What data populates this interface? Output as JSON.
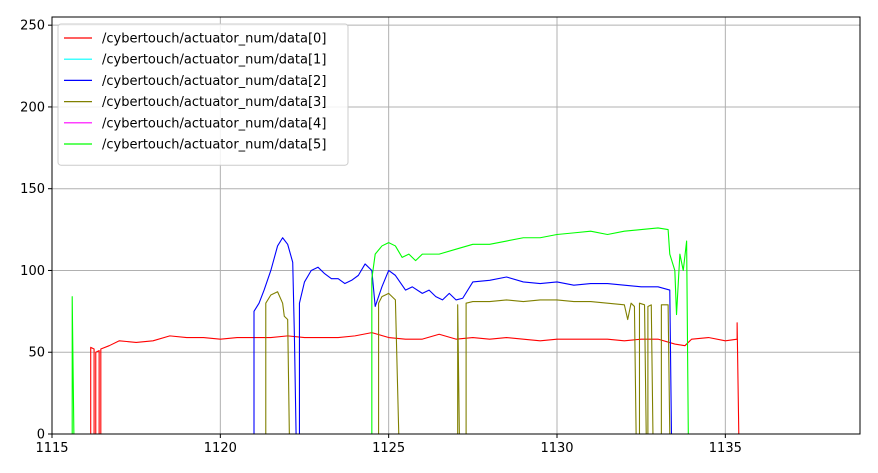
{
  "chart_data": {
    "type": "line",
    "title": "",
    "xlabel": "",
    "ylabel": "",
    "xlim": [
      1115,
      1139
    ],
    "ylim": [
      0,
      255
    ],
    "xticks": [
      1115,
      1120,
      1125,
      1130,
      1135
    ],
    "yticks": [
      0,
      50,
      100,
      150,
      200,
      250
    ],
    "grid": true,
    "legend_position": "top-left",
    "series": [
      {
        "name": "/cybertouch/actuator_num/data[0]",
        "color": "#ff0000",
        "points": [
          [
            1115.0,
            0
          ],
          [
            1116.15,
            0
          ],
          [
            1116.15,
            53
          ],
          [
            1116.25,
            52
          ],
          [
            1116.25,
            0
          ],
          [
            1116.3,
            0
          ],
          [
            1116.3,
            50
          ],
          [
            1116.4,
            51
          ],
          [
            1116.4,
            0
          ],
          [
            1116.45,
            0
          ],
          [
            1116.45,
            52
          ],
          [
            1116.7,
            54
          ],
          [
            1117.0,
            57
          ],
          [
            1117.5,
            56
          ],
          [
            1118.0,
            57
          ],
          [
            1118.5,
            60
          ],
          [
            1119.0,
            59
          ],
          [
            1119.5,
            59
          ],
          [
            1120.0,
            58
          ],
          [
            1120.5,
            59
          ],
          [
            1121.0,
            59
          ],
          [
            1121.5,
            59
          ],
          [
            1122.0,
            60
          ],
          [
            1122.5,
            59
          ],
          [
            1123.0,
            59
          ],
          [
            1123.5,
            59
          ],
          [
            1124.0,
            60
          ],
          [
            1124.5,
            62
          ],
          [
            1125.0,
            59
          ],
          [
            1125.5,
            58
          ],
          [
            1126.0,
            58
          ],
          [
            1126.5,
            61
          ],
          [
            1127.0,
            58
          ],
          [
            1127.5,
            59
          ],
          [
            1128.0,
            58
          ],
          [
            1128.5,
            59
          ],
          [
            1129.0,
            58
          ],
          [
            1129.5,
            57
          ],
          [
            1130.0,
            58
          ],
          [
            1130.5,
            58
          ],
          [
            1131.0,
            58
          ],
          [
            1131.5,
            58
          ],
          [
            1132.0,
            57
          ],
          [
            1132.5,
            58
          ],
          [
            1133.0,
            58
          ],
          [
            1133.5,
            55
          ],
          [
            1133.8,
            54
          ],
          [
            1134.0,
            58
          ],
          [
            1134.5,
            59
          ],
          [
            1135.0,
            57
          ],
          [
            1135.35,
            58
          ],
          [
            1135.35,
            68
          ],
          [
            1135.4,
            0
          ],
          [
            1139.0,
            0
          ]
        ]
      },
      {
        "name": "/cybertouch/actuator_num/data[1]",
        "color": "#00ffff",
        "points": [
          [
            1115.0,
            0
          ],
          [
            1139.0,
            0
          ]
        ]
      },
      {
        "name": "/cybertouch/actuator_num/data[2]",
        "color": "#0000ff",
        "points": [
          [
            1115.0,
            0
          ],
          [
            1121.0,
            0
          ],
          [
            1121.0,
            75
          ],
          [
            1121.15,
            80
          ],
          [
            1121.3,
            88
          ],
          [
            1121.5,
            100
          ],
          [
            1121.7,
            115
          ],
          [
            1121.85,
            120
          ],
          [
            1122.0,
            116
          ],
          [
            1122.15,
            105
          ],
          [
            1122.2,
            60
          ],
          [
            1122.25,
            0
          ],
          [
            1122.35,
            0
          ],
          [
            1122.35,
            80
          ],
          [
            1122.5,
            93
          ],
          [
            1122.7,
            100
          ],
          [
            1122.9,
            102
          ],
          [
            1123.1,
            98
          ],
          [
            1123.3,
            95
          ],
          [
            1123.5,
            95
          ],
          [
            1123.7,
            92
          ],
          [
            1123.9,
            94
          ],
          [
            1124.1,
            97
          ],
          [
            1124.3,
            104
          ],
          [
            1124.5,
            100
          ],
          [
            1124.6,
            78
          ],
          [
            1124.8,
            90
          ],
          [
            1125.0,
            100
          ],
          [
            1125.2,
            97
          ],
          [
            1125.5,
            88
          ],
          [
            1125.7,
            90
          ],
          [
            1126.0,
            86
          ],
          [
            1126.2,
            88
          ],
          [
            1126.4,
            84
          ],
          [
            1126.6,
            82
          ],
          [
            1126.8,
            86
          ],
          [
            1127.0,
            82
          ],
          [
            1127.2,
            83
          ],
          [
            1127.5,
            93
          ],
          [
            1128.0,
            94
          ],
          [
            1128.5,
            96
          ],
          [
            1129.0,
            93
          ],
          [
            1129.5,
            92
          ],
          [
            1130.0,
            93
          ],
          [
            1130.5,
            91
          ],
          [
            1131.0,
            92
          ],
          [
            1131.5,
            92
          ],
          [
            1132.0,
            91
          ],
          [
            1132.5,
            90
          ],
          [
            1133.0,
            90
          ],
          [
            1133.35,
            88
          ],
          [
            1133.4,
            0
          ],
          [
            1139.0,
            0
          ]
        ]
      },
      {
        "name": "/cybertouch/actuator_num/data[3]",
        "color": "#808000",
        "points": [
          [
            1115.0,
            0
          ],
          [
            1121.35,
            0
          ],
          [
            1121.35,
            80
          ],
          [
            1121.5,
            85
          ],
          [
            1121.7,
            87
          ],
          [
            1121.85,
            80
          ],
          [
            1121.9,
            72
          ],
          [
            1122.0,
            70
          ],
          [
            1122.05,
            0
          ],
          [
            1124.7,
            0
          ],
          [
            1124.7,
            80
          ],
          [
            1124.8,
            84
          ],
          [
            1125.0,
            86
          ],
          [
            1125.2,
            82
          ],
          [
            1125.3,
            0
          ],
          [
            1127.05,
            0
          ],
          [
            1127.05,
            79
          ],
          [
            1127.1,
            0
          ],
          [
            1127.3,
            0
          ],
          [
            1127.3,
            80
          ],
          [
            1127.5,
            81
          ],
          [
            1128.0,
            81
          ],
          [
            1128.5,
            82
          ],
          [
            1129.0,
            81
          ],
          [
            1129.5,
            82
          ],
          [
            1130.0,
            82
          ],
          [
            1130.5,
            81
          ],
          [
            1131.0,
            81
          ],
          [
            1131.5,
            80
          ],
          [
            1132.0,
            79
          ],
          [
            1132.1,
            70
          ],
          [
            1132.2,
            80
          ],
          [
            1132.3,
            78
          ],
          [
            1132.35,
            0
          ],
          [
            1132.45,
            0
          ],
          [
            1132.45,
            80
          ],
          [
            1132.6,
            79
          ],
          [
            1132.65,
            0
          ],
          [
            1132.7,
            0
          ],
          [
            1132.7,
            78
          ],
          [
            1132.8,
            79
          ],
          [
            1132.85,
            0
          ],
          [
            1133.1,
            0
          ],
          [
            1133.1,
            79
          ],
          [
            1133.3,
            79
          ],
          [
            1133.35,
            0
          ],
          [
            1139.0,
            0
          ]
        ]
      },
      {
        "name": "/cybertouch/actuator_num/data[4]",
        "color": "#ff00ff",
        "points": [
          [
            1115.0,
            0
          ],
          [
            1139.0,
            0
          ]
        ]
      },
      {
        "name": "/cybertouch/actuator_num/data[5]",
        "color": "#00ff00",
        "points": [
          [
            1115.0,
            0
          ],
          [
            1115.6,
            0
          ],
          [
            1115.6,
            84
          ],
          [
            1115.65,
            0
          ],
          [
            1124.5,
            0
          ],
          [
            1124.5,
            95
          ],
          [
            1124.6,
            110
          ],
          [
            1124.8,
            115
          ],
          [
            1125.0,
            117
          ],
          [
            1125.2,
            115
          ],
          [
            1125.4,
            108
          ],
          [
            1125.6,
            110
          ],
          [
            1125.8,
            106
          ],
          [
            1126.0,
            110
          ],
          [
            1126.5,
            110
          ],
          [
            1127.0,
            113
          ],
          [
            1127.5,
            116
          ],
          [
            1128.0,
            116
          ],
          [
            1128.5,
            118
          ],
          [
            1129.0,
            120
          ],
          [
            1129.5,
            120
          ],
          [
            1130.0,
            122
          ],
          [
            1130.5,
            123
          ],
          [
            1131.0,
            124
          ],
          [
            1131.5,
            122
          ],
          [
            1132.0,
            124
          ],
          [
            1132.5,
            125
          ],
          [
            1133.0,
            126
          ],
          [
            1133.3,
            125
          ],
          [
            1133.35,
            110
          ],
          [
            1133.5,
            100
          ],
          [
            1133.55,
            73
          ],
          [
            1133.65,
            110
          ],
          [
            1133.75,
            100
          ],
          [
            1133.85,
            118
          ],
          [
            1133.9,
            0
          ],
          [
            1139.0,
            0
          ]
        ]
      }
    ]
  }
}
